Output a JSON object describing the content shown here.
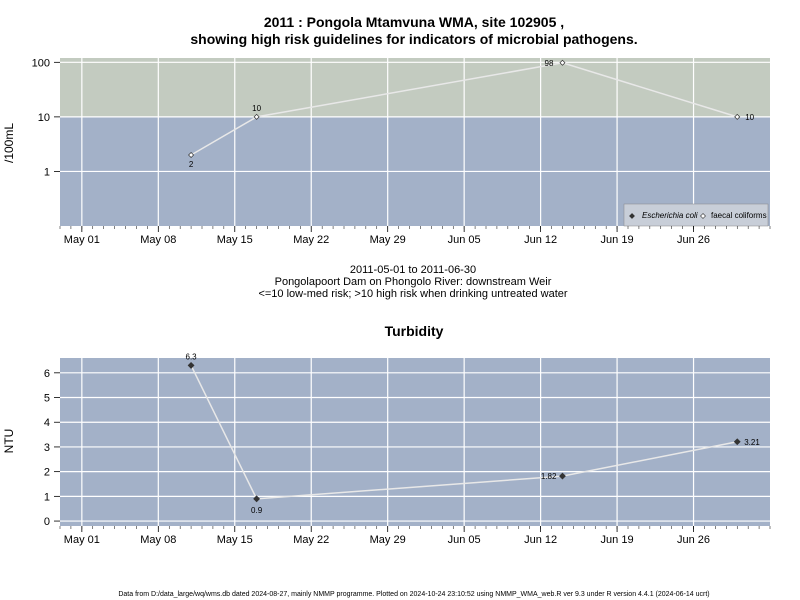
{
  "chart_data": [
    {
      "type": "line",
      "title_line1": "2011 : Pongola Mtamvuna WMA, site 102905 ,",
      "title_line2": "showing high risk guidelines for indicators of microbial pathogens.",
      "ylabel": "/100mL",
      "y_scale": "log",
      "ylim": [
        0.1,
        120
      ],
      "y_ticks": [
        1,
        10,
        100
      ],
      "y_tick_labels": [
        "1",
        "10",
        "100"
      ],
      "high_risk_threshold": 10,
      "x_ticks": [
        "2011-05-01",
        "2011-05-08",
        "2011-05-15",
        "2011-05-22",
        "2011-05-29",
        "2011-06-05",
        "2011-06-12",
        "2011-06-19",
        "2011-06-26"
      ],
      "x_tick_labels": [
        "May 01",
        "May 08",
        "May 15",
        "May 22",
        "May 29",
        "Jun 05",
        "Jun 12",
        "Jun 19",
        "Jun 26"
      ],
      "xlim": [
        "2011-04-29",
        "2011-07-03"
      ],
      "legend_position": "bottom-right",
      "series": [
        {
          "name": "faecal coliforms",
          "marker": "open-diamond",
          "x": [
            "2011-05-11",
            "2011-05-17",
            "2011-06-14",
            "2011-06-30"
          ],
          "y": [
            2,
            10,
            98,
            10
          ],
          "labels": [
            "2",
            "10",
            "98",
            "10"
          ]
        },
        {
          "name": "Escherichia coli",
          "marker": "filled-diamond",
          "x": [],
          "y": [],
          "labels": []
        }
      ],
      "caption_line1": "2011-05-01 to 2011-06-30",
      "caption_line2": "Pongolapoort Dam on Phongolo River: downstream Weir",
      "caption_line3": "<=10 low-med risk; >10 high risk when drinking untreated water",
      "colors": {
        "high_risk_band": "#c3cbc0",
        "low_risk_band": "#a3b1c8",
        "grid": "#ffffff",
        "line": "#e8e8e8"
      }
    },
    {
      "type": "line",
      "title": "Turbidity",
      "ylabel": "NTU",
      "y_scale": "linear",
      "ylim": [
        -0.2,
        6.6
      ],
      "y_ticks": [
        0,
        1,
        2,
        3,
        4,
        5,
        6
      ],
      "y_tick_labels": [
        "0",
        "1",
        "2",
        "3",
        "4",
        "5",
        "6"
      ],
      "x_ticks": [
        "2011-05-01",
        "2011-05-08",
        "2011-05-15",
        "2011-05-22",
        "2011-05-29",
        "2011-06-05",
        "2011-06-12",
        "2011-06-19",
        "2011-06-26"
      ],
      "x_tick_labels": [
        "May 01",
        "May 08",
        "May 15",
        "May 22",
        "May 29",
        "Jun 05",
        "Jun 12",
        "Jun 19",
        "Jun 26"
      ],
      "xlim": [
        "2011-04-29",
        "2011-07-03"
      ],
      "series": [
        {
          "x": [
            "2011-05-11",
            "2011-05-17",
            "2011-06-14",
            "2011-06-30"
          ],
          "y": [
            6.3,
            0.9,
            1.82,
            3.21
          ],
          "labels": [
            "6.3",
            "0.9",
            "1.82",
            "3.21"
          ]
        }
      ],
      "colors": {
        "background": "#a3b1c8",
        "grid": "#ffffff",
        "line": "#e8e8e8"
      }
    }
  ],
  "footer": "Data from D:/data_large/wq/wms.db dated 2024-08-27, mainly NMMP programme. Plotted on 2024-10-24 23:10:52 using NMMP_WMA_web.R ver 9.3 under R version 4.4.1 (2024-06-14 ucrt)"
}
